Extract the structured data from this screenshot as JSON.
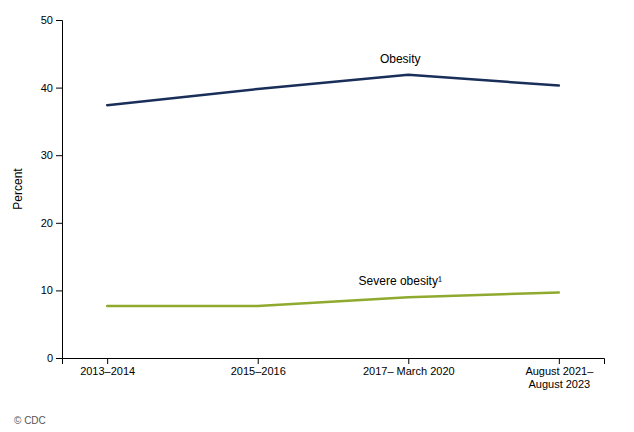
{
  "chart_data": {
    "type": "line",
    "categories": [
      "2013–2014",
      "2015–2016",
      "2017– March 2020",
      "August 2021–\nAugust 2023"
    ],
    "series": [
      {
        "name": "Obesity",
        "color": "#1a2e5a",
        "values": [
          37.4,
          39.8,
          41.9,
          40.3
        ]
      },
      {
        "name": "Severe obesity¹",
        "color": "#8faa2e",
        "values": [
          7.7,
          7.7,
          9.0,
          9.7
        ]
      }
    ],
    "ylabel": "Percent",
    "ylim": [
      0,
      50
    ],
    "yticks": [
      0,
      10,
      20,
      30,
      40,
      50
    ],
    "grid": false,
    "source": "© CDC"
  }
}
